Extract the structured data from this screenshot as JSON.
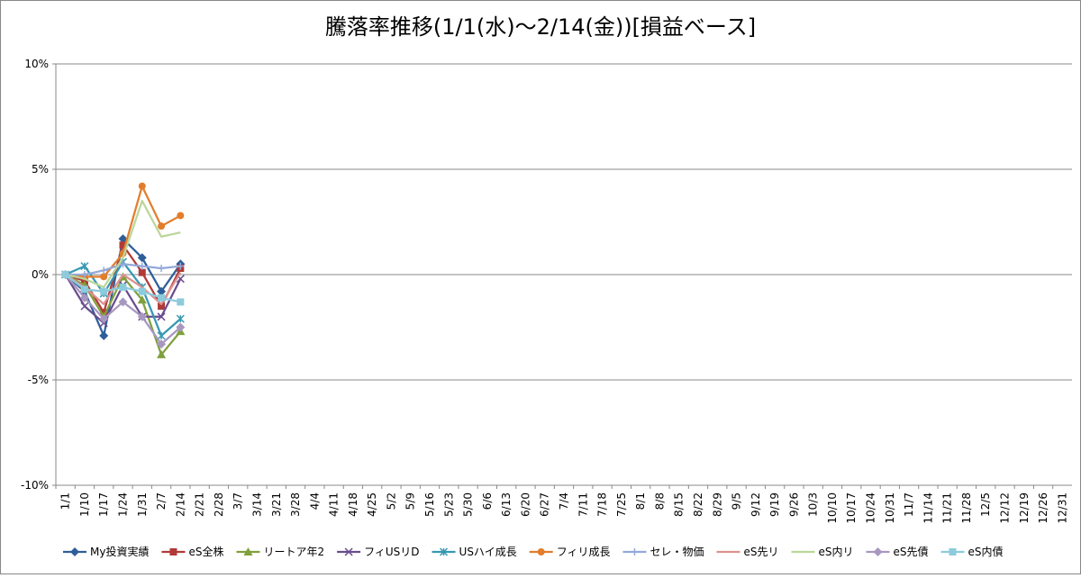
{
  "chart_data": {
    "type": "line",
    "title": "騰落率推移(1/1(水)～2/14(金))[損益ベース]",
    "categories": [
      "1/1",
      "1/10",
      "1/17",
      "1/24",
      "1/31",
      "2/7",
      "2/14",
      "2/21",
      "2/28",
      "3/7",
      "3/14",
      "3/21",
      "3/28",
      "4/4",
      "4/11",
      "4/18",
      "4/25",
      "5/2",
      "5/9",
      "5/16",
      "5/23",
      "5/30",
      "6/6",
      "6/13",
      "6/20",
      "6/27",
      "7/4",
      "7/11",
      "7/18",
      "7/25",
      "8/1",
      "8/8",
      "8/15",
      "8/22",
      "8/29",
      "9/5",
      "9/12",
      "9/19",
      "9/26",
      "10/3",
      "10/10",
      "10/17",
      "10/24",
      "10/31",
      "11/7",
      "11/14",
      "11/21",
      "11/28",
      "12/5",
      "12/12",
      "12/19",
      "12/26",
      "12/31"
    ],
    "ylim": [
      -10,
      10
    ],
    "yticks": [
      {
        "value": -10,
        "label": "-10%"
      },
      {
        "value": -5,
        "label": "-5%"
      },
      {
        "value": 0,
        "label": "0%"
      },
      {
        "value": 5,
        "label": "5%"
      },
      {
        "value": 10,
        "label": "10%"
      }
    ],
    "grid": true,
    "legend": "bottom",
    "series": [
      {
        "name": "My投資実績",
        "color": "#2e5e9a",
        "marker": "diamond",
        "values": [
          0,
          -0.8,
          -2.9,
          1.7,
          0.8,
          -0.8,
          0.5,
          null,
          null,
          null,
          null,
          null,
          null,
          null,
          null,
          null,
          null,
          null,
          null,
          null,
          null,
          null,
          null,
          null,
          null,
          null,
          null,
          null,
          null,
          null,
          null,
          null,
          null,
          null,
          null,
          null,
          null,
          null,
          null,
          null,
          null,
          null,
          null,
          null,
          null,
          null,
          null,
          null,
          null,
          null,
          null,
          null,
          null
        ]
      },
      {
        "name": "eS全株",
        "color": "#b03a37",
        "marker": "square",
        "values": [
          0,
          -0.3,
          -1.8,
          1.4,
          0.1,
          -1.5,
          0.3,
          null,
          null,
          null,
          null,
          null,
          null,
          null,
          null,
          null,
          null,
          null,
          null,
          null,
          null,
          null,
          null,
          null,
          null,
          null,
          null,
          null,
          null,
          null,
          null,
          null,
          null,
          null,
          null,
          null,
          null,
          null,
          null,
          null,
          null,
          null,
          null,
          null,
          null,
          null,
          null,
          null,
          null,
          null,
          null,
          null,
          null
        ]
      },
      {
        "name": "リートア年2",
        "color": "#7fa03c",
        "marker": "triangle",
        "values": [
          0,
          -0.5,
          -2.0,
          -0.1,
          -1.2,
          -3.8,
          -2.7,
          null,
          null,
          null,
          null,
          null,
          null,
          null,
          null,
          null,
          null,
          null,
          null,
          null,
          null,
          null,
          null,
          null,
          null,
          null,
          null,
          null,
          null,
          null,
          null,
          null,
          null,
          null,
          null,
          null,
          null,
          null,
          null,
          null,
          null,
          null,
          null,
          null,
          null,
          null,
          null,
          null,
          null,
          null,
          null,
          null,
          null
        ]
      },
      {
        "name": "フィUSリD",
        "color": "#6a4d8e",
        "marker": "x",
        "values": [
          0,
          -1.5,
          -2.3,
          -0.5,
          -2.0,
          -2.0,
          -0.2,
          null,
          null,
          null,
          null,
          null,
          null,
          null,
          null,
          null,
          null,
          null,
          null,
          null,
          null,
          null,
          null,
          null,
          null,
          null,
          null,
          null,
          null,
          null,
          null,
          null,
          null,
          null,
          null,
          null,
          null,
          null,
          null,
          null,
          null,
          null,
          null,
          null,
          null,
          null,
          null,
          null,
          null,
          null,
          null,
          null,
          null
        ]
      },
      {
        "name": "USハイ成長",
        "color": "#3798b3",
        "marker": "star",
        "values": [
          0,
          0.4,
          -0.9,
          0.6,
          -0.6,
          -2.9,
          -2.1,
          null,
          null,
          null,
          null,
          null,
          null,
          null,
          null,
          null,
          null,
          null,
          null,
          null,
          null,
          null,
          null,
          null,
          null,
          null,
          null,
          null,
          null,
          null,
          null,
          null,
          null,
          null,
          null,
          null,
          null,
          null,
          null,
          null,
          null,
          null,
          null,
          null,
          null,
          null,
          null,
          null,
          null,
          null,
          null,
          null,
          null
        ]
      },
      {
        "name": "フィリ成長",
        "color": "#e27d2c",
        "marker": "circle",
        "values": [
          0,
          -0.1,
          -0.1,
          1.0,
          4.2,
          2.3,
          2.8,
          null,
          null,
          null,
          null,
          null,
          null,
          null,
          null,
          null,
          null,
          null,
          null,
          null,
          null,
          null,
          null,
          null,
          null,
          null,
          null,
          null,
          null,
          null,
          null,
          null,
          null,
          null,
          null,
          null,
          null,
          null,
          null,
          null,
          null,
          null,
          null,
          null,
          null,
          null,
          null,
          null,
          null,
          null,
          null,
          null,
          null
        ]
      },
      {
        "name": "セレ・物価",
        "color": "#93a9d9",
        "marker": "plus",
        "values": [
          0,
          0.0,
          0.2,
          0.5,
          0.4,
          0.3,
          0.4,
          null,
          null,
          null,
          null,
          null,
          null,
          null,
          null,
          null,
          null,
          null,
          null,
          null,
          null,
          null,
          null,
          null,
          null,
          null,
          null,
          null,
          null,
          null,
          null,
          null,
          null,
          null,
          null,
          null,
          null,
          null,
          null,
          null,
          null,
          null,
          null,
          null,
          null,
          null,
          null,
          null,
          null,
          null,
          null,
          null,
          null
        ]
      },
      {
        "name": "eS先リ",
        "color": "#dc9290",
        "marker": "none",
        "values": [
          0,
          -0.6,
          -1.4,
          0.0,
          -0.6,
          -1.4,
          0.1,
          null,
          null,
          null,
          null,
          null,
          null,
          null,
          null,
          null,
          null,
          null,
          null,
          null,
          null,
          null,
          null,
          null,
          null,
          null,
          null,
          null,
          null,
          null,
          null,
          null,
          null,
          null,
          null,
          null,
          null,
          null,
          null,
          null,
          null,
          null,
          null,
          null,
          null,
          null,
          null,
          null,
          null,
          null,
          null,
          null,
          null
        ]
      },
      {
        "name": "eS内リ",
        "color": "#bcd69a",
        "marker": "none",
        "values": [
          0,
          -0.2,
          -0.6,
          0.8,
          3.5,
          1.8,
          2.0,
          null,
          null,
          null,
          null,
          null,
          null,
          null,
          null,
          null,
          null,
          null,
          null,
          null,
          null,
          null,
          null,
          null,
          null,
          null,
          null,
          null,
          null,
          null,
          null,
          null,
          null,
          null,
          null,
          null,
          null,
          null,
          null,
          null,
          null,
          null,
          null,
          null,
          null,
          null,
          null,
          null,
          null,
          null,
          null,
          null,
          null
        ]
      },
      {
        "name": "eS先債",
        "color": "#a898c0",
        "marker": "diamond",
        "values": [
          0,
          -1.1,
          -2.1,
          -1.3,
          -2.0,
          -3.3,
          -2.5,
          null,
          null,
          null,
          null,
          null,
          null,
          null,
          null,
          null,
          null,
          null,
          null,
          null,
          null,
          null,
          null,
          null,
          null,
          null,
          null,
          null,
          null,
          null,
          null,
          null,
          null,
          null,
          null,
          null,
          null,
          null,
          null,
          null,
          null,
          null,
          null,
          null,
          null,
          null,
          null,
          null,
          null,
          null,
          null,
          null,
          null
        ]
      },
      {
        "name": "eS内債",
        "color": "#8ccbdc",
        "marker": "square",
        "values": [
          0,
          -0.7,
          -0.8,
          -0.6,
          -0.8,
          -1.1,
          -1.3,
          null,
          null,
          null,
          null,
          null,
          null,
          null,
          null,
          null,
          null,
          null,
          null,
          null,
          null,
          null,
          null,
          null,
          null,
          null,
          null,
          null,
          null,
          null,
          null,
          null,
          null,
          null,
          null,
          null,
          null,
          null,
          null,
          null,
          null,
          null,
          null,
          null,
          null,
          null,
          null,
          null,
          null,
          null,
          null,
          null,
          null
        ]
      }
    ]
  }
}
